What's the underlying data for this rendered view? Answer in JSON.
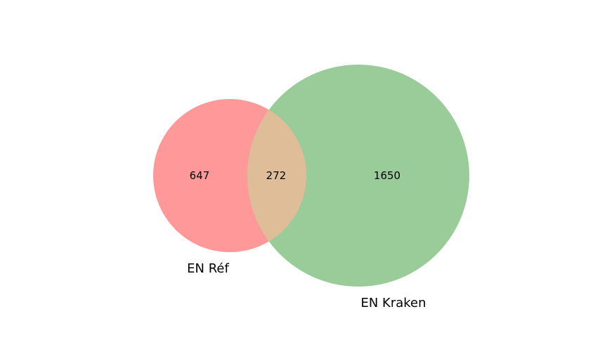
{
  "venn": {
    "sets": [
      {
        "name": "EN Réf",
        "only_count": "647",
        "color": "#ff9999"
      },
      {
        "name": "EN Kraken",
        "only_count": "1650",
        "color": "#99cc99"
      }
    ],
    "intersection_count": "272",
    "intersection_color": "#e0bd99"
  }
}
